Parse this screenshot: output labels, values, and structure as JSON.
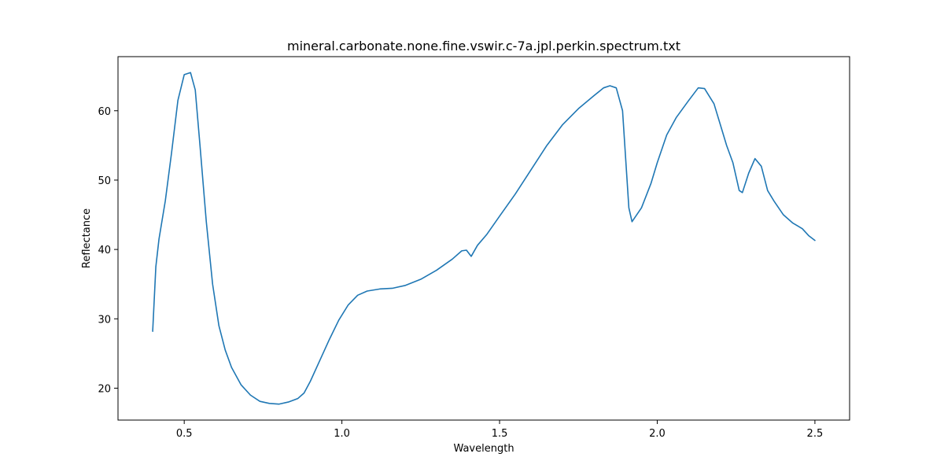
{
  "chart_data": {
    "type": "line",
    "title": "mineral.carbonate.none.fine.vswir.c-7a.jpl.perkin.spectrum.txt",
    "xlabel": "Wavelength",
    "ylabel": "Reflectance",
    "xlim": [
      0.29,
      2.61
    ],
    "ylim": [
      15.4,
      67.8
    ],
    "xticks": [
      0.5,
      1.0,
      1.5,
      2.0,
      2.5
    ],
    "xtick_labels": [
      "0.5",
      "1.0",
      "1.5",
      "2.0",
      "2.5"
    ],
    "yticks": [
      20,
      30,
      40,
      50,
      60
    ],
    "ytick_labels": [
      "20",
      "30",
      "40",
      "50",
      "60"
    ],
    "grid": false,
    "color": "#1f77b4",
    "series": [
      {
        "x": [
          0.4,
          0.41,
          0.42,
          0.44,
          0.46,
          0.48,
          0.5,
          0.52,
          0.535,
          0.55,
          0.57,
          0.59,
          0.61,
          0.63,
          0.65,
          0.68,
          0.71,
          0.74,
          0.77,
          0.8,
          0.83,
          0.86,
          0.88,
          0.9,
          0.93,
          0.96,
          0.99,
          1.02,
          1.05,
          1.08,
          1.12,
          1.16,
          1.2,
          1.25,
          1.3,
          1.35,
          1.38,
          1.395,
          1.41,
          1.43,
          1.46,
          1.5,
          1.55,
          1.6,
          1.65,
          1.7,
          1.75,
          1.8,
          1.83,
          1.85,
          1.87,
          1.89,
          1.91,
          1.92,
          1.95,
          1.98,
          2.0,
          2.03,
          2.06,
          2.1,
          2.13,
          2.15,
          2.18,
          2.2,
          2.22,
          2.24,
          2.26,
          2.27,
          2.29,
          2.31,
          2.33,
          2.35,
          2.37,
          2.4,
          2.43,
          2.46,
          2.48,
          2.5
        ],
        "y": [
          28.2,
          37.5,
          41.5,
          47.0,
          54.0,
          61.5,
          65.2,
          65.5,
          63.0,
          55.0,
          44.0,
          35.0,
          29.0,
          25.5,
          23.0,
          20.5,
          19.0,
          18.1,
          17.8,
          17.7,
          18.0,
          18.5,
          19.3,
          21.0,
          24.0,
          27.0,
          29.8,
          32.0,
          33.4,
          34.0,
          34.3,
          34.4,
          34.8,
          35.7,
          37.0,
          38.6,
          39.8,
          39.9,
          39.0,
          40.6,
          42.2,
          44.8,
          48.0,
          51.5,
          55.0,
          58.0,
          60.3,
          62.2,
          63.3,
          63.6,
          63.3,
          60.0,
          46.0,
          44.0,
          46.0,
          49.5,
          52.5,
          56.5,
          59.0,
          61.5,
          63.3,
          63.2,
          61.0,
          58.0,
          55.0,
          52.5,
          48.5,
          48.2,
          51.0,
          53.1,
          52.0,
          48.5,
          47.0,
          45.0,
          43.8,
          43.0,
          42.0,
          41.3
        ]
      }
    ]
  }
}
